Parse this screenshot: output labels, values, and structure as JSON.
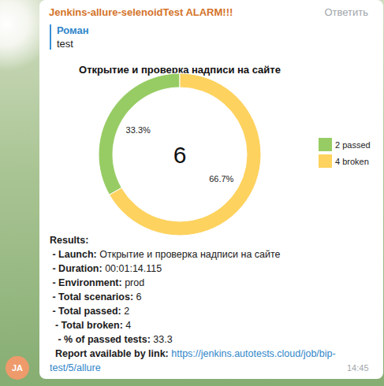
{
  "message": {
    "sender": "Jenkins-allure-selenoidTest ALARM!!!",
    "reply_action": "Ответить",
    "avatar": "JA",
    "time": "14:45"
  },
  "reply": {
    "author": "Роман",
    "text": "test"
  },
  "chart_data": {
    "type": "donut",
    "title": "Открытие и проверка надписи на сайте",
    "categories": [
      "2 passed",
      "4 broken"
    ],
    "values": [
      33.3,
      66.7
    ],
    "value_labels": [
      "33.3%",
      "66.7%"
    ],
    "colors": [
      "#97cc64",
      "#fdd25e"
    ],
    "data_labels": true,
    "legend": "right",
    "annotations": [
      "6"
    ]
  },
  "report": {
    "heading": "Results:",
    "lines": [
      {
        "label": " - Launch:",
        "value": "Открытие и проверка надписи на сайте"
      },
      {
        "label": " - Duration:",
        "value": "00:01:14.115"
      },
      {
        "label": " - Environment:",
        "value": "prod"
      },
      {
        "label": " - Total scenarios:",
        "value": "6"
      },
      {
        "label": " - Total passed:",
        "value": "2"
      },
      {
        "label": "  - Total broken:",
        "value": "4"
      },
      {
        "label": "   - % of passed tests:",
        "value": "33.3"
      }
    ],
    "link_label": "  Report available by link:",
    "link": "https://jenkins.autotests.cloud/job/bip-test/5/allure"
  }
}
